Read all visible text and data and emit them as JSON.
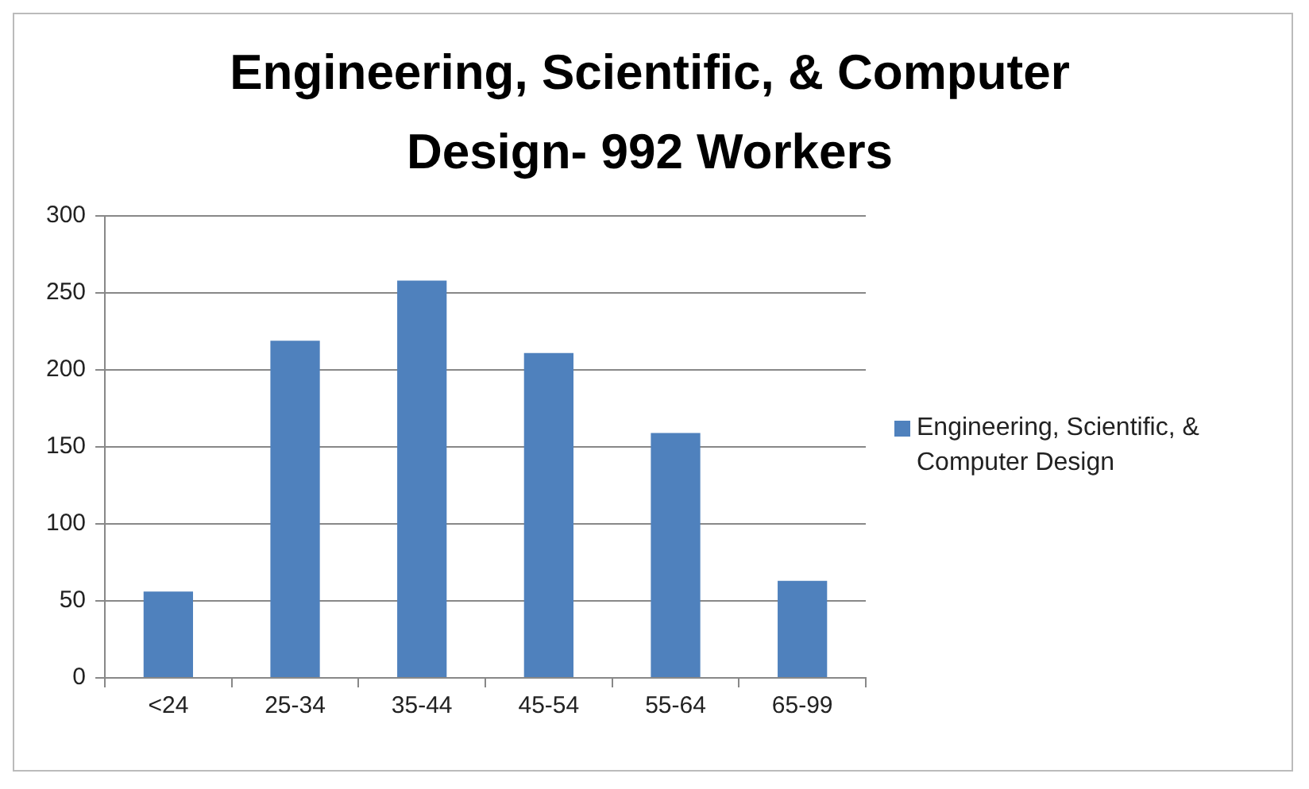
{
  "chart_data": {
    "type": "bar",
    "title": "Engineering, Scientific, & Computer Design- 992 Workers",
    "categories": [
      "<24",
      "25-34",
      "35-44",
      "45-54",
      "55-64",
      "65-99"
    ],
    "series": [
      {
        "name": "Engineering, Scientific, & Computer Design",
        "color": "#4f81bd",
        "values": [
          56,
          219,
          258,
          211,
          159,
          63
        ]
      }
    ],
    "ylim": [
      0,
      300
    ],
    "yticks": [
      0,
      50,
      100,
      150,
      200,
      250,
      300
    ],
    "grid": "y",
    "legend": "right"
  }
}
